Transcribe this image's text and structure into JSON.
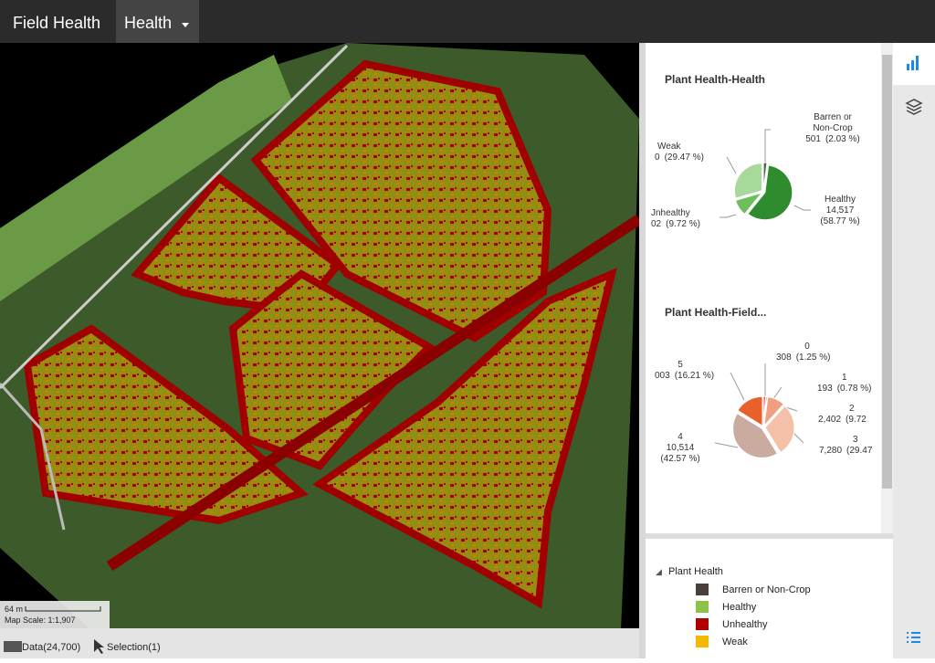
{
  "header": {
    "title": "Field Health",
    "tab": "Health"
  },
  "map": {
    "scale_distance": "64 m",
    "scale_label": "Map Scale: 1:1,907"
  },
  "status": {
    "data": "Data(24,700)",
    "selection": "Selection(1)"
  },
  "charts": [
    {
      "title": "Plant Health-Health",
      "slices": [
        {
          "name": [
            "Barren or",
            "Non-Crop"
          ],
          "count": "501",
          "value": 2.03,
          "label": "(2.03 %)",
          "color": "#3f6b3a"
        },
        {
          "name": [
            "Healthy"
          ],
          "count": "14,517",
          "value": 58.77,
          "label": "(58.77 %)",
          "color": "#2e8b2e"
        },
        {
          "name": [
            "Jnhealthy"
          ],
          "count": "02",
          "value": 9.72,
          "label": "(9.72 %)",
          "color": "#6cbf5c"
        },
        {
          "name": [
            "Weak"
          ],
          "count": "0",
          "value": 29.47,
          "label": "(29.47 %)",
          "color": "#a6d99a"
        }
      ]
    },
    {
      "title": "Plant Health-Field...",
      "slices": [
        {
          "name": [
            "0"
          ],
          "count": "308",
          "value": 1.25,
          "label": "(1.25 %)",
          "color": "#d9534f"
        },
        {
          "name": [
            "1"
          ],
          "count": "193",
          "value": 0.78,
          "label": "(0.78 %)",
          "color": "#e8826a"
        },
        {
          "name": [
            "2"
          ],
          "count": "2,402",
          "value": 9.72,
          "label": "(9.72",
          "color": "#f0a080"
        },
        {
          "name": [
            "3"
          ],
          "count": "7,280",
          "value": 29.47,
          "label": "(29.47",
          "color": "#f3c0a8"
        },
        {
          "name": [
            "4"
          ],
          "count": "10,514",
          "value": 42.57,
          "label": "(42.57 %)",
          "color": "#c9aba0"
        },
        {
          "name": [
            "5"
          ],
          "count": "003",
          "value": 16.21,
          "label": "(16.21 %)",
          "color": "#e8602c"
        }
      ]
    }
  ],
  "legend": {
    "title": "Plant Health",
    "items": [
      {
        "name": "Barren or Non-Crop",
        "color": "#4a3f38"
      },
      {
        "name": "Healthy",
        "color": "#8bc34a"
      },
      {
        "name": "Unhealthy",
        "color": "#b00000"
      },
      {
        "name": "Weak",
        "color": "#f5b800"
      }
    ]
  }
}
